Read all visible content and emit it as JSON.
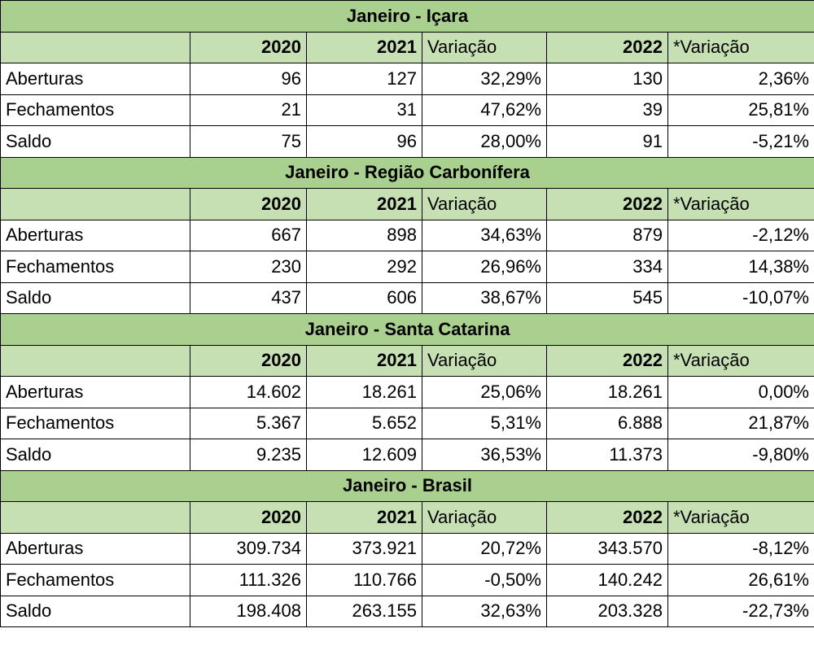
{
  "header": {
    "y2020": "2020",
    "y2021": "2021",
    "variacao": "Variação",
    "y2022": "2022",
    "variacao_star": "*Variação"
  },
  "sections": [
    {
      "title": "Janeiro - Içara",
      "rows": [
        {
          "label": "Aberturas",
          "v2020": "96",
          "v2021": "127",
          "var": "32,29%",
          "v2022": "130",
          "var2": "2,36%"
        },
        {
          "label": "Fechamentos",
          "v2020": "21",
          "v2021": "31",
          "var": "47,62%",
          "v2022": "39",
          "var2": "25,81%"
        },
        {
          "label": "Saldo",
          "v2020": "75",
          "v2021": "96",
          "var": "28,00%",
          "v2022": "91",
          "var2": "-5,21%"
        }
      ]
    },
    {
      "title": "Janeiro - Região Carbonífera",
      "rows": [
        {
          "label": "Aberturas",
          "v2020": "667",
          "v2021": "898",
          "var": "34,63%",
          "v2022": "879",
          "var2": "-2,12%"
        },
        {
          "label": "Fechamentos",
          "v2020": "230",
          "v2021": "292",
          "var": "26,96%",
          "v2022": "334",
          "var2": "14,38%"
        },
        {
          "label": "Saldo",
          "v2020": "437",
          "v2021": "606",
          "var": "38,67%",
          "v2022": "545",
          "var2": "-10,07%"
        }
      ]
    },
    {
      "title": "Janeiro - Santa Catarina",
      "rows": [
        {
          "label": "Aberturas",
          "v2020": "14.602",
          "v2021": "18.261",
          "var": "25,06%",
          "v2022": "18.261",
          "var2": "0,00%"
        },
        {
          "label": "Fechamentos",
          "v2020": "5.367",
          "v2021": "5.652",
          "var": "5,31%",
          "v2022": "6.888",
          "var2": "21,87%"
        },
        {
          "label": "Saldo",
          "v2020": "9.235",
          "v2021": "12.609",
          "var": "36,53%",
          "v2022": "11.373",
          "var2": "-9,80%"
        }
      ]
    },
    {
      "title": "Janeiro - Brasil",
      "rows": [
        {
          "label": "Aberturas",
          "v2020": "309.734",
          "v2021": "373.921",
          "var": "20,72%",
          "v2022": "343.570",
          "var2": "-8,12%"
        },
        {
          "label": "Fechamentos",
          "v2020": "111.326",
          "v2021": "110.766",
          "var": "-0,50%",
          "v2022": "140.242",
          "var2": "26,61%"
        },
        {
          "label": "Saldo",
          "v2020": "198.408",
          "v2021": "263.155",
          "var": "32,63%",
          "v2022": "203.328",
          "var2": "-22,73%"
        }
      ]
    }
  ]
}
